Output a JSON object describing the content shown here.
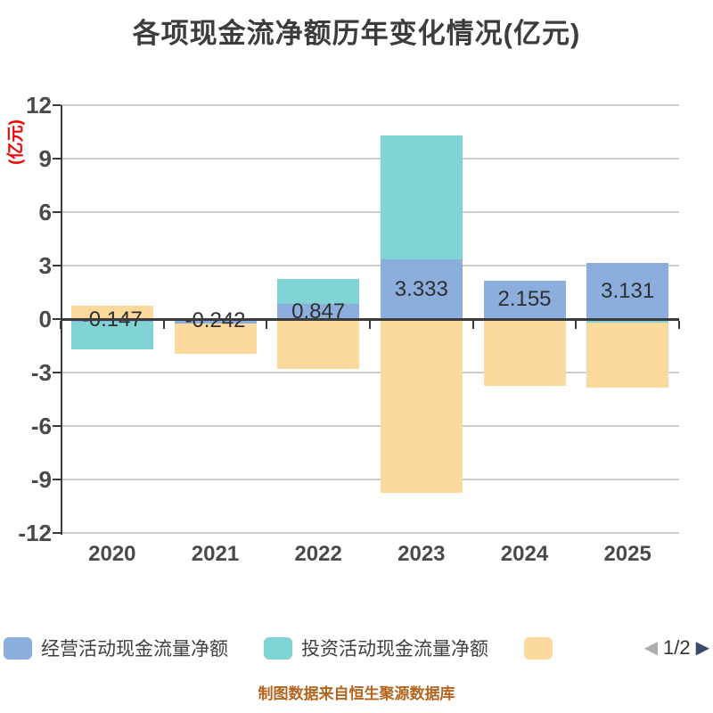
{
  "title": "各项现金流净额历年变化情况(亿元)",
  "y_axis": {
    "label": "(亿元)",
    "ticks": [
      12,
      9,
      6,
      3,
      0,
      -3,
      -6,
      -9,
      -12
    ],
    "min": -12,
    "max": 12
  },
  "chart_data": {
    "type": "bar",
    "stacked": true,
    "title": "各项现金流净额历年变化情况(亿元)",
    "ylabel": "(亿元)",
    "ylim": [
      -12,
      12
    ],
    "grid": true,
    "legend_position": "bottom",
    "categories": [
      "2020",
      "2021",
      "2022",
      "2023",
      "2024",
      "2025"
    ],
    "series": [
      {
        "name": "经营活动现金流量净额",
        "color": "#8CAEDD",
        "values": [
          -0.147,
          -0.242,
          0.847,
          3.333,
          2.155,
          3.131
        ]
      },
      {
        "name": "投资活动现金流量净额",
        "color": "#81D4D5",
        "values": [
          -1.55,
          0,
          1.4,
          6.97,
          0,
          -0.2
        ]
      },
      {
        "name": "",
        "color": "#FCDA9E",
        "values": [
          0.75,
          -1.71,
          -2.8,
          -9.73,
          -3.75,
          -3.65
        ]
      }
    ],
    "value_labels": [
      "-0.147",
      "-0.242",
      "0.847",
      "3.333",
      "2.155",
      "3.131"
    ]
  },
  "legend": {
    "items": [
      {
        "label": "经营活动现金流量净额",
        "color": "#8CAEDD"
      },
      {
        "label": "投资活动现金流量净额",
        "color": "#81D4D5"
      },
      {
        "label": "",
        "color": "#FCDA9E"
      }
    ]
  },
  "pagination": {
    "page": "1/2",
    "prev": "◀",
    "next": "▶"
  },
  "footer": {
    "source": "制图数据来自恒生聚源数据库"
  },
  "colors": {
    "grid": "#cdcdcd",
    "axis": "#3a3a3a",
    "tick_label": "#4a4a4a",
    "title": "#3c3c3c",
    "axis_unit_label": "#f40000",
    "footer_text": "#b4641e"
  }
}
